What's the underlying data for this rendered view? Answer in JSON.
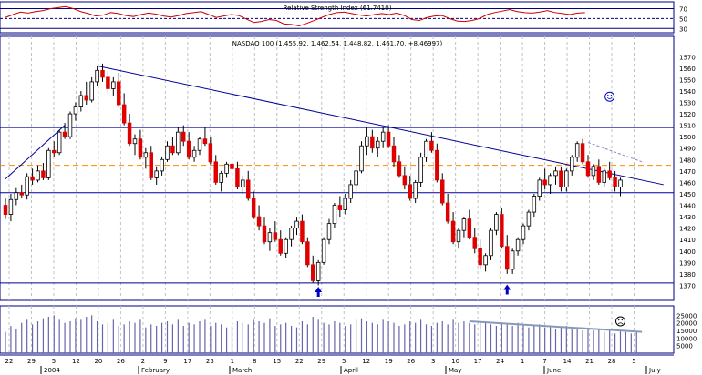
{
  "chart_data": [
    {
      "type": "line",
      "panel": "rsi",
      "label": "Relative Strength Index (61.7410)",
      "y_ticks": [
        30,
        50,
        70
      ],
      "ylim": [
        25,
        80
      ],
      "reference_levels": [
        30,
        50,
        70
      ],
      "line_color": "#cc0000",
      "values": [
        52,
        58,
        63,
        61,
        64,
        66,
        70,
        72,
        74,
        70,
        64,
        60,
        55,
        57,
        62,
        60,
        56,
        54,
        58,
        61,
        59,
        55,
        53,
        56,
        60,
        62,
        64,
        58,
        52,
        55,
        58,
        56,
        49,
        42,
        44,
        48,
        46,
        39,
        38,
        35,
        40,
        46,
        52,
        58,
        62,
        63,
        60,
        57,
        55,
        58,
        60,
        58,
        61,
        56,
        48,
        46,
        52,
        55,
        56,
        50,
        45,
        44,
        46,
        50,
        58,
        62,
        65,
        68,
        64,
        62,
        61,
        63,
        66,
        62,
        60,
        58,
        61,
        62
      ]
    },
    {
      "type": "candlestick",
      "panel": "price",
      "label": "NASDAQ 100 (1,455.92, 1,462.54, 1,448.82, 1,461.70, +8.46997)",
      "ylim": [
        1360,
        1575
      ],
      "y_ticks": [
        1370,
        1380,
        1390,
        1400,
        1410,
        1420,
        1430,
        1440,
        1450,
        1460,
        1470,
        1480,
        1490,
        1500,
        1510,
        1520,
        1530,
        1540,
        1550,
        1560,
        1570
      ],
      "up_color": "#ffffff",
      "down_color": "#e00000",
      "horizontal_levels": [
        {
          "value": 1508,
          "color": "#000099"
        },
        {
          "value": 1475,
          "color": "#ff8c00",
          "style": "dashed"
        },
        {
          "value": 1451,
          "color": "#000099"
        },
        {
          "value": 1372,
          "color": "#000099"
        }
      ],
      "trendlines": [
        {
          "from": [
            0,
            1463
          ],
          "to": [
            11,
            1510
          ]
        },
        {
          "from": [
            17,
            1562
          ],
          "to": [
            122,
            1458
          ]
        },
        {
          "from": [
            108,
            1495
          ],
          "to": [
            118,
            1478
          ]
        }
      ],
      "arrows_up": [
        {
          "bar": 58,
          "value": 1364
        },
        {
          "bar": 93,
          "value": 1366
        }
      ],
      "annotations": [
        {
          "type": "smiley",
          "bar": 112,
          "value": 1535
        }
      ],
      "ohlc": [
        [
          1440,
          1446,
          1428,
          1432
        ],
        [
          1432,
          1450,
          1426,
          1445
        ],
        [
          1445,
          1455,
          1440,
          1451
        ],
        [
          1451,
          1458,
          1446,
          1449
        ],
        [
          1449,
          1468,
          1445,
          1465
        ],
        [
          1465,
          1472,
          1458,
          1462
        ],
        [
          1462,
          1475,
          1460,
          1470
        ],
        [
          1470,
          1477,
          1462,
          1464
        ],
        [
          1464,
          1490,
          1462,
          1488
        ],
        [
          1488,
          1496,
          1482,
          1486
        ],
        [
          1486,
          1506,
          1484,
          1504
        ],
        [
          1504,
          1512,
          1498,
          1500
        ],
        [
          1500,
          1522,
          1498,
          1520
        ],
        [
          1520,
          1530,
          1514,
          1526
        ],
        [
          1526,
          1540,
          1522,
          1536
        ],
        [
          1536,
          1548,
          1528,
          1532
        ],
        [
          1532,
          1552,
          1530,
          1548
        ],
        [
          1548,
          1562,
          1544,
          1558
        ],
        [
          1558,
          1564,
          1548,
          1552
        ],
        [
          1552,
          1558,
          1538,
          1542
        ],
        [
          1542,
          1552,
          1536,
          1548
        ],
        [
          1548,
          1556,
          1526,
          1528
        ],
        [
          1528,
          1538,
          1510,
          1512
        ],
        [
          1512,
          1520,
          1492,
          1494
        ],
        [
          1494,
          1502,
          1484,
          1498
        ],
        [
          1498,
          1506,
          1480,
          1482
        ],
        [
          1482,
          1490,
          1472,
          1486
        ],
        [
          1486,
          1492,
          1462,
          1464
        ],
        [
          1464,
          1474,
          1458,
          1470
        ],
        [
          1470,
          1482,
          1466,
          1480
        ],
        [
          1480,
          1496,
          1478,
          1492
        ],
        [
          1492,
          1500,
          1484,
          1486
        ],
        [
          1486,
          1508,
          1484,
          1504
        ],
        [
          1504,
          1510,
          1492,
          1496
        ],
        [
          1496,
          1504,
          1480,
          1482
        ],
        [
          1482,
          1492,
          1478,
          1488
        ],
        [
          1488,
          1500,
          1484,
          1498
        ],
        [
          1498,
          1508,
          1492,
          1494
        ],
        [
          1494,
          1500,
          1476,
          1478
        ],
        [
          1478,
          1484,
          1458,
          1460
        ],
        [
          1460,
          1470,
          1452,
          1468
        ],
        [
          1468,
          1478,
          1464,
          1476
        ],
        [
          1476,
          1484,
          1470,
          1472
        ],
        [
          1472,
          1478,
          1454,
          1456
        ],
        [
          1456,
          1466,
          1450,
          1462
        ],
        [
          1462,
          1470,
          1444,
          1446
        ],
        [
          1446,
          1452,
          1428,
          1430
        ],
        [
          1430,
          1440,
          1418,
          1422
        ],
        [
          1422,
          1430,
          1406,
          1408
        ],
        [
          1408,
          1420,
          1400,
          1416
        ],
        [
          1416,
          1426,
          1408,
          1410
        ],
        [
          1410,
          1418,
          1396,
          1398
        ],
        [
          1398,
          1412,
          1394,
          1410
        ],
        [
          1410,
          1422,
          1404,
          1420
        ],
        [
          1420,
          1430,
          1414,
          1426
        ],
        [
          1426,
          1432,
          1406,
          1408
        ],
        [
          1408,
          1412,
          1386,
          1388
        ],
        [
          1388,
          1396,
          1372,
          1374
        ],
        [
          1374,
          1392,
          1370,
          1390
        ],
        [
          1390,
          1412,
          1388,
          1410
        ],
        [
          1410,
          1428,
          1406,
          1424
        ],
        [
          1424,
          1442,
          1420,
          1440
        ],
        [
          1440,
          1448,
          1430,
          1436
        ],
        [
          1436,
          1450,
          1432,
          1446
        ],
        [
          1446,
          1462,
          1442,
          1458
        ],
        [
          1458,
          1474,
          1452,
          1470
        ],
        [
          1470,
          1496,
          1468,
          1492
        ],
        [
          1492,
          1508,
          1484,
          1500
        ],
        [
          1500,
          1506,
          1486,
          1490
        ],
        [
          1490,
          1500,
          1482,
          1496
        ],
        [
          1496,
          1508,
          1490,
          1504
        ],
        [
          1504,
          1510,
          1490,
          1492
        ],
        [
          1492,
          1500,
          1474,
          1478
        ],
        [
          1478,
          1484,
          1464,
          1466
        ],
        [
          1466,
          1474,
          1454,
          1458
        ],
        [
          1458,
          1466,
          1444,
          1446
        ],
        [
          1446,
          1462,
          1442,
          1460
        ],
        [
          1460,
          1486,
          1456,
          1482
        ],
        [
          1482,
          1498,
          1478,
          1496
        ],
        [
          1496,
          1504,
          1486,
          1488
        ],
        [
          1488,
          1494,
          1460,
          1462
        ],
        [
          1462,
          1468,
          1440,
          1442
        ],
        [
          1442,
          1450,
          1424,
          1426
        ],
        [
          1426,
          1434,
          1406,
          1408
        ],
        [
          1408,
          1420,
          1402,
          1418
        ],
        [
          1418,
          1430,
          1412,
          1428
        ],
        [
          1428,
          1436,
          1410,
          1412
        ],
        [
          1412,
          1420,
          1398,
          1402
        ],
        [
          1402,
          1410,
          1384,
          1388
        ],
        [
          1388,
          1398,
          1382,
          1396
        ],
        [
          1396,
          1420,
          1392,
          1418
        ],
        [
          1418,
          1434,
          1414,
          1432
        ],
        [
          1432,
          1438,
          1402,
          1404
        ],
        [
          1404,
          1414,
          1380,
          1384
        ],
        [
          1384,
          1402,
          1380,
          1400
        ],
        [
          1400,
          1412,
          1396,
          1410
        ],
        [
          1410,
          1424,
          1406,
          1422
        ],
        [
          1422,
          1436,
          1418,
          1434
        ],
        [
          1434,
          1450,
          1430,
          1448
        ],
        [
          1448,
          1464,
          1444,
          1462
        ],
        [
          1462,
          1472,
          1454,
          1458
        ],
        [
          1458,
          1468,
          1450,
          1466
        ],
        [
          1466,
          1474,
          1458,
          1470
        ],
        [
          1470,
          1474,
          1452,
          1456
        ],
        [
          1456,
          1472,
          1452,
          1470
        ],
        [
          1470,
          1484,
          1466,
          1482
        ],
        [
          1482,
          1496,
          1478,
          1494
        ],
        [
          1494,
          1498,
          1476,
          1478
        ],
        [
          1478,
          1484,
          1464,
          1466
        ],
        [
          1466,
          1476,
          1462,
          1474
        ],
        [
          1474,
          1480,
          1458,
          1460
        ],
        [
          1460,
          1472,
          1456,
          1470
        ],
        [
          1470,
          1478,
          1462,
          1464
        ],
        [
          1464,
          1470,
          1452,
          1456
        ],
        [
          1456,
          1464,
          1448,
          1462
        ]
      ],
      "price_label_note": ""
    },
    {
      "type": "bar",
      "panel": "volume",
      "y_ticks": [
        "25000",
        "20000",
        "15000",
        "10000",
        "5000"
      ],
      "ylim": [
        0,
        30000
      ],
      "bar_color": "#6666aa",
      "trendline": {
        "from": [
          86,
          21000
        ],
        "to": [
          118,
          14000
        ],
        "color": "#8899bb"
      },
      "annotations": [
        {
          "type": "frowny",
          "bar": 114,
          "value": 21000
        }
      ],
      "values": [
        14000,
        18000,
        16000,
        20000,
        22000,
        19000,
        21000,
        23000,
        24000,
        25000,
        22000,
        20000,
        21000,
        23000,
        22000,
        24000,
        25000,
        21000,
        19000,
        20000,
        22000,
        18000,
        19000,
        21000,
        20000,
        22000,
        17000,
        19000,
        18000,
        20000,
        21000,
        19000,
        22000,
        18000,
        20000,
        19000,
        21000,
        22000,
        18000,
        20000,
        19000,
        17000,
        18000,
        21000,
        20000,
        19000,
        22000,
        21000,
        20000,
        23000,
        18000,
        19000,
        20000,
        18000,
        17000,
        21000,
        19000,
        24000,
        22000,
        20000,
        19000,
        21000,
        20000,
        18000,
        19000,
        22000,
        23000,
        21000,
        20000,
        19000,
        22000,
        21000,
        20000,
        18000,
        19000,
        21000,
        20000,
        22000,
        19000,
        18000,
        20000,
        21000,
        19000,
        22000,
        20000,
        21000,
        20000,
        19000,
        21000,
        20000,
        19000,
        18000,
        20000,
        19000,
        18000,
        20000,
        19000,
        17000,
        18000,
        19000,
        17000,
        18000,
        16000,
        17000,
        18000,
        16000,
        17000,
        15000,
        16000,
        15000,
        16000,
        14000,
        15000,
        13000,
        15000,
        14000,
        13000,
        14000
      ]
    }
  ],
  "x_axis": {
    "day_labels": [
      "22",
      "29",
      "5",
      "12",
      "20",
      "26",
      "2",
      "9",
      "17",
      "23",
      "1",
      "8",
      "15",
      "22",
      "29",
      "5",
      "12",
      "19",
      "26",
      "3",
      "10",
      "17",
      "24",
      "1",
      "7",
      "14",
      "21",
      "28",
      "5"
    ],
    "month_labels": [
      "2004",
      "February",
      "March",
      "April",
      "May",
      "June",
      "July"
    ]
  }
}
